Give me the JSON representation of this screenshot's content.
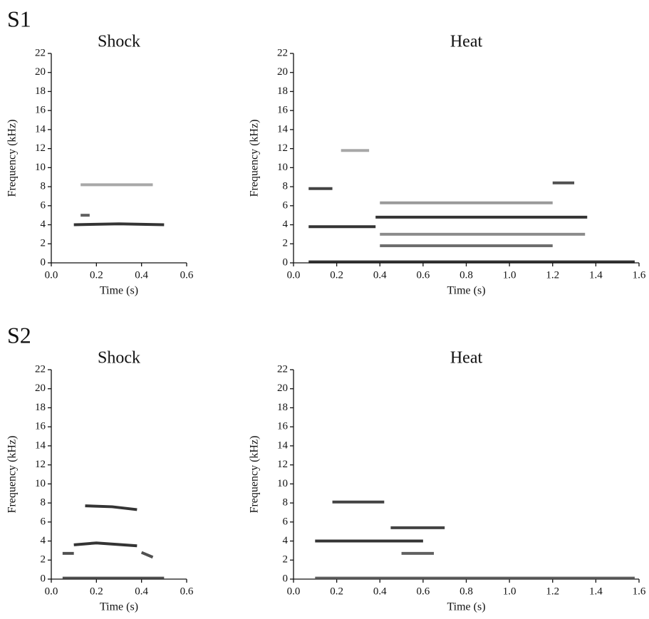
{
  "row_labels": [
    "S1",
    "S2"
  ],
  "chart_data": [
    {
      "type": "line",
      "title": "Shock",
      "xlabel": "Time (s)",
      "ylabel": "Frequency (kHz)",
      "xlim": [
        0,
        0.6
      ],
      "ylim": [
        0,
        22
      ],
      "xticks": [
        {
          "value": 0,
          "label": "0.0"
        },
        0.2,
        0.4,
        0.6
      ],
      "yticks": [
        0,
        2,
        4,
        6,
        8,
        10,
        12,
        14,
        16,
        18,
        20,
        22
      ],
      "series": [
        {
          "color": "#111111",
          "x": [
            0.1,
            0.3,
            0.5
          ],
          "values": [
            4,
            4.1,
            4
          ]
        },
        {
          "color": "#999999",
          "x": [
            0.13,
            0.45
          ],
          "values": [
            8.2,
            8.2
          ]
        },
        {
          "color": "#444444",
          "x": [
            0.13,
            0.17
          ],
          "values": [
            5,
            5
          ]
        }
      ]
    },
    {
      "type": "line",
      "title": "Heat",
      "xlabel": "Time (s)",
      "ylabel": "Frequency (kHz)",
      "xlim": [
        0,
        1.6
      ],
      "ylim": [
        0,
        22
      ],
      "xticks": [
        {
          "value": 0,
          "label": "0.0"
        },
        0.2,
        0.4,
        0.6,
        0.8,
        {
          "value": 1,
          "label": "1.0"
        },
        1.2,
        1.4,
        1.6
      ],
      "yticks": [
        0,
        2,
        4,
        6,
        8,
        10,
        12,
        14,
        16,
        18,
        20,
        22
      ],
      "series": [
        {
          "color": "#111111",
          "x": [
            0.07,
            0.38
          ],
          "values": [
            3.8,
            3.8
          ]
        },
        {
          "color": "#111111",
          "x": [
            0.38,
            1.36
          ],
          "values": [
            4.8,
            4.8
          ]
        },
        {
          "color": "#222222",
          "x": [
            0.07,
            0.18
          ],
          "values": [
            7.8,
            7.8
          ]
        },
        {
          "color": "#999999",
          "x": [
            0.22,
            0.35
          ],
          "values": [
            11.8,
            11.8
          ]
        },
        {
          "color": "#111111",
          "x": [
            0.07,
            1.58
          ],
          "values": [
            0.1,
            0.1
          ]
        },
        {
          "color": "#555555",
          "x": [
            0.4,
            1.2
          ],
          "values": [
            1.8,
            1.8
          ]
        },
        {
          "color": "#777777",
          "x": [
            0.4,
            1.35
          ],
          "values": [
            3,
            3
          ]
        },
        {
          "color": "#888888",
          "x": [
            0.4,
            1.2
          ],
          "values": [
            6.3,
            6.3
          ]
        },
        {
          "color": "#333333",
          "x": [
            1.2,
            1.3
          ],
          "values": [
            8.4,
            8.4
          ]
        }
      ]
    },
    {
      "type": "line",
      "title": "Shock",
      "xlabel": "Time (s)",
      "ylabel": "Frequency (kHz)",
      "xlim": [
        0,
        0.6
      ],
      "ylim": [
        0,
        22
      ],
      "xticks": [
        {
          "value": 0,
          "label": "0.0"
        },
        0.2,
        0.4,
        0.6
      ],
      "yticks": [
        0,
        2,
        4,
        6,
        8,
        10,
        12,
        14,
        16,
        18,
        20,
        22
      ],
      "series": [
        {
          "color": "#111111",
          "x": [
            0.15,
            0.27,
            0.38
          ],
          "values": [
            7.7,
            7.6,
            7.3
          ]
        },
        {
          "color": "#111111",
          "x": [
            0.1,
            0.2,
            0.38
          ],
          "values": [
            3.6,
            3.8,
            3.5
          ]
        },
        {
          "color": "#333333",
          "x": [
            0.05,
            0.5
          ],
          "values": [
            0.1,
            0.1
          ]
        },
        {
          "color": "#333333",
          "x": [
            0.05,
            0.1
          ],
          "values": [
            2.7,
            2.7
          ]
        },
        {
          "color": "#333333",
          "x": [
            0.4,
            0.45
          ],
          "values": [
            2.8,
            2.3
          ]
        }
      ]
    },
    {
      "type": "line",
      "title": "Heat",
      "xlabel": "Time (s)",
      "ylabel": "Frequency (kHz)",
      "xlim": [
        0,
        1.6
      ],
      "ylim": [
        0,
        22
      ],
      "xticks": [
        {
          "value": 0,
          "label": "0.0"
        },
        0.2,
        0.4,
        0.6,
        0.8,
        {
          "value": 1,
          "label": "1.0"
        },
        1.2,
        1.4,
        1.6
      ],
      "yticks": [
        0,
        2,
        4,
        6,
        8,
        10,
        12,
        14,
        16,
        18,
        20,
        22
      ],
      "series": [
        {
          "color": "#222222",
          "x": [
            0.18,
            0.42
          ],
          "values": [
            8.1,
            8.1
          ]
        },
        {
          "color": "#111111",
          "x": [
            0.1,
            0.6
          ],
          "values": [
            4,
            4
          ]
        },
        {
          "color": "#222222",
          "x": [
            0.45,
            0.7
          ],
          "values": [
            5.4,
            5.4
          ]
        },
        {
          "color": "#444444",
          "x": [
            0.1,
            1.58
          ],
          "values": [
            0.1,
            0.1
          ]
        },
        {
          "color": "#444444",
          "x": [
            0.5,
            0.65
          ],
          "values": [
            2.7,
            2.7
          ]
        }
      ]
    }
  ]
}
